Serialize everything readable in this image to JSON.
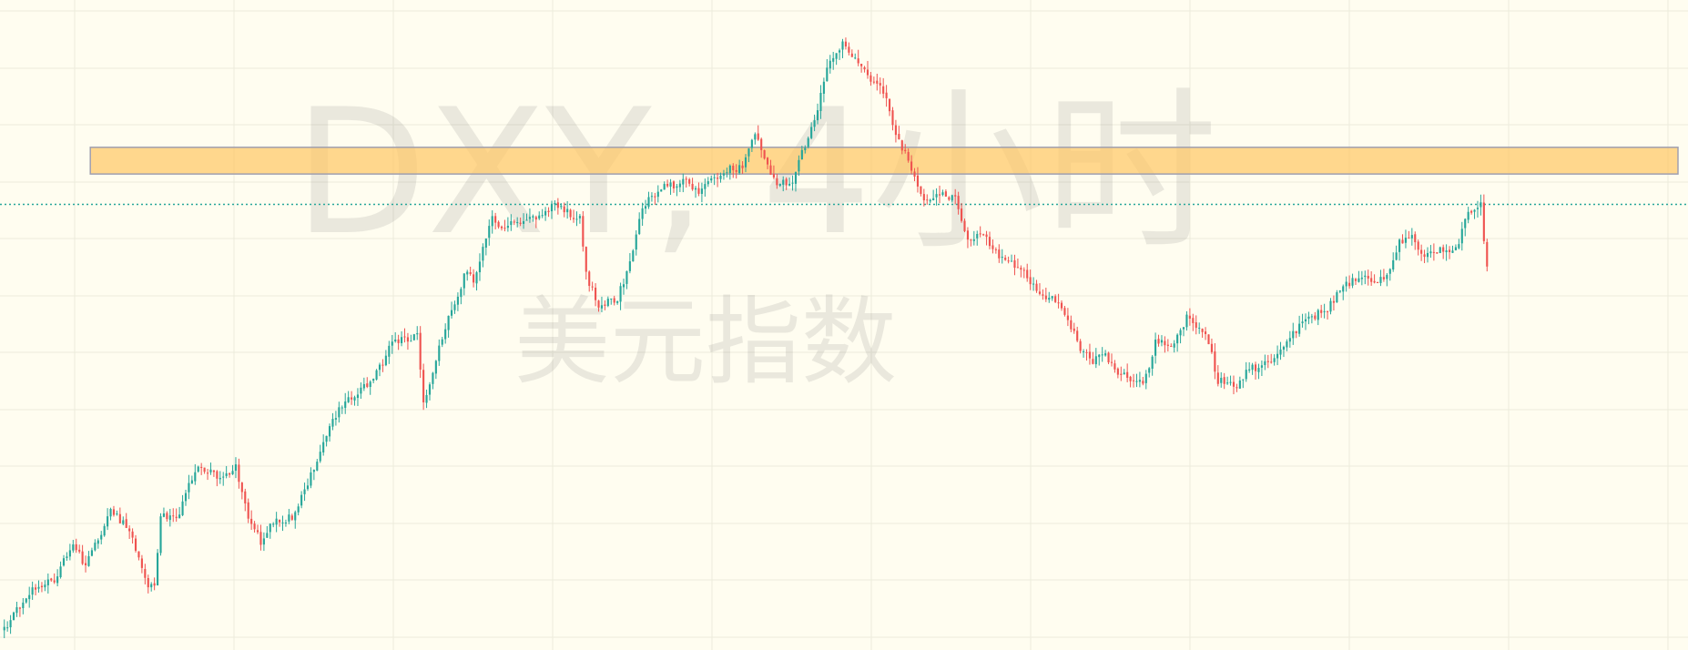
{
  "chart_data": {
    "type": "candlestick",
    "watermark": {
      "title": "DXY, 4小时",
      "subtitle": "美元指数"
    },
    "colors": {
      "background": "#fffdf0",
      "up": "#26a69a",
      "down": "#ef5350",
      "grid": "#ecebdc",
      "zone_fill": "#ffc766",
      "zone_border": "#a0a0b0",
      "price_line": "#26a69a"
    },
    "grid": true,
    "ylim": [
      0,
      100
    ],
    "resistance_zone": {
      "low": 75.2,
      "high": 79.5,
      "start_index": 28
    },
    "current_price_line": 70.3,
    "path": [
      [
        0,
        2
      ],
      [
        8,
        8
      ],
      [
        16,
        10
      ],
      [
        22,
        16
      ],
      [
        26,
        12
      ],
      [
        34,
        21
      ],
      [
        40,
        18
      ],
      [
        46,
        9
      ],
      [
        48,
        9
      ],
      [
        50,
        20
      ],
      [
        56,
        20
      ],
      [
        58,
        24
      ],
      [
        62,
        28
      ],
      [
        70,
        26
      ],
      [
        74,
        28
      ],
      [
        78,
        20
      ],
      [
        82,
        16
      ],
      [
        86,
        19
      ],
      [
        92,
        20
      ],
      [
        96,
        24
      ],
      [
        104,
        35
      ],
      [
        110,
        39
      ],
      [
        118,
        42
      ],
      [
        124,
        48
      ],
      [
        132,
        49
      ],
      [
        134,
        38
      ],
      [
        140,
        49
      ],
      [
        148,
        60
      ],
      [
        150,
        58
      ],
      [
        156,
        69
      ],
      [
        158,
        67
      ],
      [
        164,
        67
      ],
      [
        176,
        70
      ],
      [
        184,
        68
      ],
      [
        186,
        59
      ],
      [
        190,
        54
      ],
      [
        196,
        55
      ],
      [
        200,
        61
      ],
      [
        204,
        70
      ],
      [
        206,
        71
      ],
      [
        210,
        73
      ],
      [
        218,
        74
      ],
      [
        222,
        72
      ],
      [
        226,
        74
      ],
      [
        232,
        76
      ],
      [
        236,
        76
      ],
      [
        240,
        82
      ],
      [
        246,
        74
      ],
      [
        252,
        74
      ],
      [
        260,
        86
      ],
      [
        264,
        94
      ],
      [
        268,
        96
      ],
      [
        274,
        92
      ],
      [
        282,
        88
      ],
      [
        284,
        83
      ],
      [
        290,
        76
      ],
      [
        292,
        73
      ],
      [
        294,
        71
      ],
      [
        298,
        72
      ],
      [
        304,
        71
      ],
      [
        308,
        64
      ],
      [
        312,
        66
      ],
      [
        318,
        62
      ],
      [
        322,
        61
      ],
      [
        326,
        60
      ],
      [
        330,
        56
      ],
      [
        336,
        55
      ],
      [
        340,
        52
      ],
      [
        344,
        47
      ],
      [
        348,
        45
      ],
      [
        352,
        46
      ],
      [
        356,
        43
      ],
      [
        362,
        42
      ],
      [
        364,
        41
      ],
      [
        368,
        48
      ],
      [
        374,
        48
      ],
      [
        378,
        52
      ],
      [
        384,
        50
      ],
      [
        388,
        42
      ],
      [
        394,
        41
      ],
      [
        398,
        44
      ],
      [
        402,
        44
      ],
      [
        410,
        48
      ],
      [
        416,
        52
      ],
      [
        422,
        53
      ],
      [
        428,
        57
      ],
      [
        434,
        59
      ],
      [
        438,
        58
      ],
      [
        442,
        59
      ],
      [
        446,
        64
      ],
      [
        450,
        65
      ],
      [
        454,
        62
      ],
      [
        458,
        63
      ],
      [
        464,
        63
      ],
      [
        468,
        69
      ],
      [
        472,
        70
      ],
      [
        474,
        60
      ]
    ]
  }
}
